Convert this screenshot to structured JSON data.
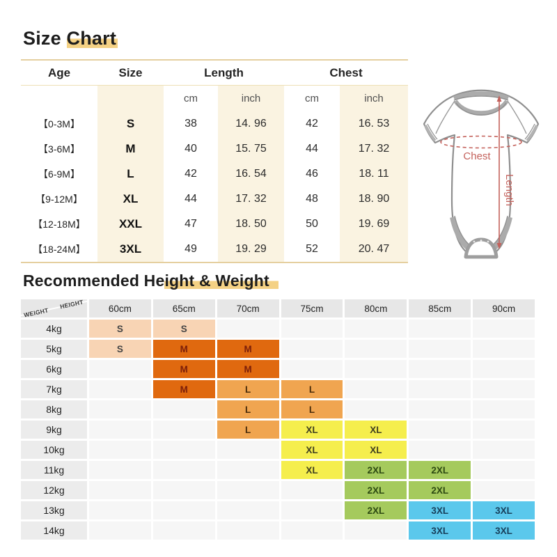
{
  "size_chart": {
    "title_plain": "Size ",
    "title_highlight": "Chart",
    "header": {
      "age": "Age",
      "size": "Size",
      "length": "Length",
      "chest": "Chest"
    },
    "units": {
      "cm": "cm",
      "inch": "inch"
    },
    "rows": [
      {
        "age": "【0-3M】",
        "size": "S",
        "length_cm": "38",
        "length_inch": "14. 96",
        "chest_cm": "42",
        "chest_inch": "16. 53"
      },
      {
        "age": "【3-6M】",
        "size": "M",
        "length_cm": "40",
        "length_inch": "15. 75",
        "chest_cm": "44",
        "chest_inch": "17. 32"
      },
      {
        "age": "【6-9M】",
        "size": "L",
        "length_cm": "42",
        "length_inch": "16. 54",
        "chest_cm": "46",
        "chest_inch": "18. 11"
      },
      {
        "age": "【9-12M】",
        "size": "XL",
        "length_cm": "44",
        "length_inch": "17. 32",
        "chest_cm": "48",
        "chest_inch": "18. 90"
      },
      {
        "age": "【12-18M】",
        "size": "XXL",
        "length_cm": "47",
        "length_inch": "18. 50",
        "chest_cm": "50",
        "chest_inch": "19. 69"
      },
      {
        "age": "【18-24M】",
        "size": "3XL",
        "length_cm": "49",
        "length_inch": "19. 29",
        "chest_cm": "52",
        "chest_inch": "20. 47"
      }
    ],
    "diagram": {
      "chest_label": "Chest",
      "length_label": "Length",
      "annotation_color": "#c4625c",
      "outline_color": "#8f8f8f",
      "trim_color": "#ababab"
    }
  },
  "recommended": {
    "title_plain": "Recommended He",
    "title_highlight": "ight & Weight",
    "corner": {
      "top": "HEIGHT",
      "bottom": "WEIGHT"
    },
    "height_headers": [
      "60cm",
      "65cm",
      "70cm",
      "75cm",
      "80cm",
      "85cm",
      "90cm"
    ],
    "weights": [
      "4kg",
      "5kg",
      "6kg",
      "7kg",
      "8kg",
      "9kg",
      "10kg",
      "11kg",
      "12kg",
      "13kg",
      "14kg"
    ],
    "cells": [
      [
        "S",
        "S",
        "",
        "",
        "",
        "",
        ""
      ],
      [
        "S",
        "M",
        "M",
        "",
        "",
        "",
        ""
      ],
      [
        "",
        "M",
        "M",
        "",
        "",
        "",
        ""
      ],
      [
        "",
        "M",
        "L",
        "L",
        "",
        "",
        ""
      ],
      [
        "",
        "",
        "L",
        "L",
        "",
        "",
        ""
      ],
      [
        "",
        "",
        "L",
        "XL",
        "XL",
        "",
        ""
      ],
      [
        "",
        "",
        "",
        "XL",
        "XL",
        "",
        ""
      ],
      [
        "",
        "",
        "",
        "XL",
        "2XL",
        "2XL",
        ""
      ],
      [
        "",
        "",
        "",
        "",
        "2XL",
        "2XL",
        ""
      ],
      [
        "",
        "",
        "",
        "",
        "2XL",
        "3XL",
        "3XL"
      ],
      [
        "",
        "",
        "",
        "",
        "",
        "3XL",
        "3XL"
      ]
    ],
    "size_colors": {
      "S": "#f8d4b4",
      "M": "#e0690f",
      "L": "#f0a550",
      "XL": "#f5ee4d",
      "2XL": "#a5ca5d",
      "3XL": "#5bc8ec"
    },
    "size_text_colors": {
      "S": "#454545",
      "M": "#7c1f0a",
      "L": "#4c2e0c",
      "XL": "#3f3f20",
      "2XL": "#2d4a12",
      "3XL": "#173f5a"
    },
    "empty_color": "#f6f6f6",
    "header_color": "#e7e7e7",
    "accent_highlight": "#f4d184"
  },
  "chart_data": [
    {
      "type": "table",
      "title": "Size Chart",
      "columns": [
        "Age",
        "Size",
        "Length (cm)",
        "Length (inch)",
        "Chest (cm)",
        "Chest (inch)"
      ],
      "rows": [
        [
          "0-3M",
          "S",
          "38",
          "14.96",
          "42",
          "16.53"
        ],
        [
          "3-6M",
          "M",
          "40",
          "15.75",
          "44",
          "17.32"
        ],
        [
          "6-9M",
          "L",
          "42",
          "16.54",
          "46",
          "18.11"
        ],
        [
          "9-12M",
          "XL",
          "44",
          "17.32",
          "48",
          "18.90"
        ],
        [
          "12-18M",
          "XXL",
          "47",
          "18.50",
          "50",
          "19.69"
        ],
        [
          "18-24M",
          "3XL",
          "49",
          "19.29",
          "52",
          "20.47"
        ]
      ]
    },
    {
      "type": "table",
      "title": "Recommended Height & Weight",
      "columns": [
        "Weight",
        "60cm",
        "65cm",
        "70cm",
        "75cm",
        "80cm",
        "85cm",
        "90cm"
      ],
      "rows": [
        [
          "4kg",
          "S",
          "S",
          "",
          "",
          "",
          "",
          ""
        ],
        [
          "5kg",
          "S",
          "M",
          "M",
          "",
          "",
          "",
          ""
        ],
        [
          "6kg",
          "",
          "M",
          "M",
          "",
          "",
          "",
          ""
        ],
        [
          "7kg",
          "",
          "M",
          "L",
          "L",
          "",
          "",
          ""
        ],
        [
          "8kg",
          "",
          "",
          "L",
          "L",
          "",
          "",
          ""
        ],
        [
          "9kg",
          "",
          "",
          "L",
          "XL",
          "XL",
          "",
          ""
        ],
        [
          "10kg",
          "",
          "",
          "",
          "XL",
          "XL",
          "",
          ""
        ],
        [
          "11kg",
          "",
          "",
          "",
          "XL",
          "2XL",
          "2XL",
          ""
        ],
        [
          "12kg",
          "",
          "",
          "",
          "",
          "2XL",
          "2XL",
          ""
        ],
        [
          "13kg",
          "",
          "",
          "",
          "",
          "2XL",
          "3XL",
          "3XL"
        ],
        [
          "14kg",
          "",
          "",
          "",
          "",
          "",
          "3XL",
          "3XL"
        ]
      ]
    }
  ]
}
